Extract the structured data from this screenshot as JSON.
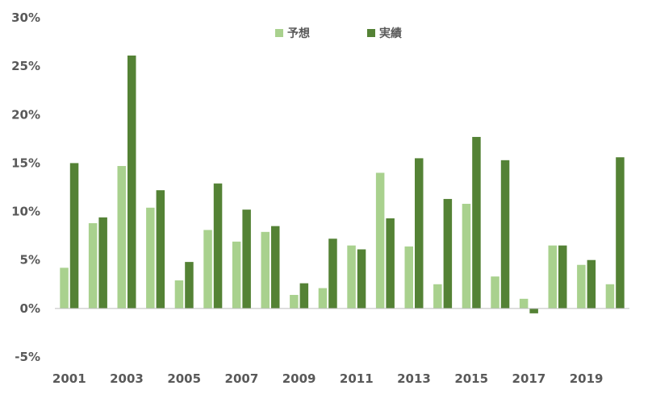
{
  "chart_data": {
    "type": "bar",
    "title": "",
    "xlabel": "",
    "ylabel": "",
    "ylim": [
      -5,
      30
    ],
    "y_ticks": [
      "30%",
      "25%",
      "20%",
      "15%",
      "10%",
      "5%",
      "0%",
      "-5%"
    ],
    "y_tick_values": [
      30,
      25,
      20,
      15,
      10,
      5,
      0,
      -5
    ],
    "categories": [
      "2001",
      "2002",
      "2003",
      "2004",
      "2005",
      "2006",
      "2007",
      "2008",
      "2009",
      "2010",
      "2011",
      "2012",
      "2013",
      "2014",
      "2015",
      "2016",
      "2017",
      "2018",
      "2019",
      "2020"
    ],
    "x_tick_labels_shown": [
      "2001",
      "",
      "2003",
      "",
      "2005",
      "",
      "2007",
      "",
      "2009",
      "",
      "2011",
      "",
      "2013",
      "",
      "2015",
      "",
      "2017",
      "",
      "2019",
      ""
    ],
    "grid": false,
    "legend_position": "top-center",
    "series": [
      {
        "name": "予想",
        "color": "#a9d18e",
        "values": [
          4.2,
          8.8,
          14.7,
          10.4,
          2.9,
          8.1,
          6.9,
          7.9,
          1.4,
          2.1,
          6.5,
          14.0,
          6.4,
          2.5,
          10.8,
          3.3,
          1.0,
          6.5,
          4.5,
          2.5
        ]
      },
      {
        "name": "実績",
        "color": "#548235",
        "values": [
          15.0,
          9.4,
          26.1,
          12.2,
          4.8,
          12.9,
          10.2,
          8.5,
          2.6,
          7.2,
          6.1,
          9.3,
          15.5,
          11.3,
          17.7,
          15.3,
          -0.5,
          6.5,
          5.0,
          15.6
        ]
      }
    ]
  }
}
